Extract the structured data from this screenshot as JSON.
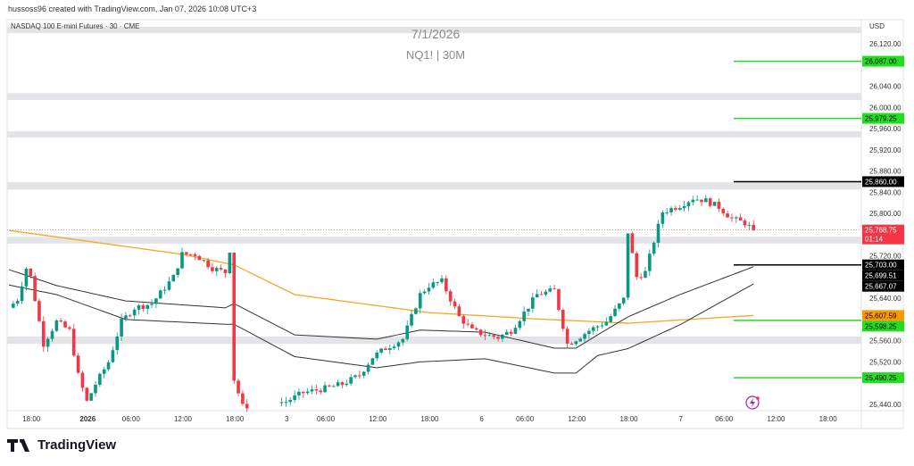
{
  "header": {
    "credit": "hussoss96 created with TradingView.com, Jan 07, 2026 10:08 UTC+3"
  },
  "symbol_title": "NASDAQ 100 E-mini Futures · 30 · CME",
  "watermark": {
    "date": "7/1/2026",
    "ticker": "NQ1! | 30M"
  },
  "currency": "USD",
  "footer": {
    "brand": "TradingView"
  },
  "colors": {
    "up": "#089981",
    "down": "#f23645",
    "ma": "#f5a623",
    "band": "#333333",
    "level_green": "#22dd22",
    "zone": "#e3e4e8"
  },
  "chart_data": {
    "type": "candlestick",
    "title": "NASDAQ 100 E-mini Futures · 30 · CME",
    "ylim": [
      25420,
      26150
    ],
    "y_ticks": [
      "26,120.00",
      "26,040.00",
      "26,000.00",
      "25,960.00",
      "25,920.00",
      "25,880.00",
      "25,840.00",
      "25,800.00",
      "25,720.00",
      "25,640.00",
      "25,560.00",
      "25,520.00",
      "25,440.00"
    ],
    "y_tick_values": [
      26120,
      26040,
      26000,
      25960,
      25920,
      25880,
      25840,
      25800,
      25720,
      25640,
      25560,
      25520,
      25440
    ],
    "x_ticks": [
      {
        "label": "18:00",
        "bar": 5,
        "bold": false
      },
      {
        "label": "2026",
        "bar": 18,
        "bold": true
      },
      {
        "label": "06:00",
        "bar": 28,
        "bold": false
      },
      {
        "label": "12:00",
        "bar": 40,
        "bold": false
      },
      {
        "label": "18:00",
        "bar": 52,
        "bold": false
      },
      {
        "label": "3",
        "bar": 64,
        "bold": false
      },
      {
        "label": "06:00",
        "bar": 73,
        "bold": false
      },
      {
        "label": "12:00",
        "bar": 85,
        "bold": false
      },
      {
        "label": "18:00",
        "bar": 97,
        "bold": false
      },
      {
        "label": "6",
        "bar": 109,
        "bold": false
      },
      {
        "label": "06:00",
        "bar": 119,
        "bold": false
      },
      {
        "label": "12:00",
        "bar": 131,
        "bold": false
      },
      {
        "label": "18:00",
        "bar": 143,
        "bold": false
      },
      {
        "label": "7",
        "bar": 155,
        "bold": false
      },
      {
        "label": "06:00",
        "bar": 165,
        "bold": false
      },
      {
        "label": "12:00",
        "bar": 177,
        "bold": false
      },
      {
        "label": "18:00",
        "bar": 189,
        "bold": false
      }
    ],
    "close_keypoints": [
      [
        0,
        25622
      ],
      [
        2,
        25638
      ],
      [
        4,
        25697
      ],
      [
        5,
        25680
      ],
      [
        8,
        25554
      ],
      [
        11,
        25596
      ],
      [
        14,
        25579
      ],
      [
        16,
        25495
      ],
      [
        18,
        25445
      ],
      [
        20,
        25478
      ],
      [
        23,
        25520
      ],
      [
        26,
        25596
      ],
      [
        29,
        25622
      ],
      [
        33,
        25630
      ],
      [
        38,
        25680
      ],
      [
        40,
        25723
      ],
      [
        43,
        25723
      ],
      [
        47,
        25697
      ],
      [
        50,
        25689
      ],
      [
        51,
        25731
      ],
      [
        52,
        25487
      ],
      [
        54,
        25436
      ],
      [
        64,
        25445
      ],
      [
        68,
        25462
      ],
      [
        73,
        25470
      ],
      [
        77,
        25478
      ],
      [
        81,
        25495
      ],
      [
        84,
        25529
      ],
      [
        87,
        25546
      ],
      [
        91,
        25563
      ],
      [
        95,
        25647
      ],
      [
        97,
        25664
      ],
      [
        100,
        25672
      ],
      [
        104,
        25605
      ],
      [
        107,
        25579
      ],
      [
        110,
        25571
      ],
      [
        113,
        25566
      ],
      [
        116,
        25579
      ],
      [
        119,
        25613
      ],
      [
        122,
        25647
      ],
      [
        126,
        25655
      ],
      [
        129,
        25554
      ],
      [
        131,
        25563
      ],
      [
        134,
        25579
      ],
      [
        138,
        25596
      ],
      [
        142,
        25638
      ],
      [
        143,
        25765
      ],
      [
        145,
        25680
      ],
      [
        147,
        25689
      ],
      [
        149,
        25748
      ],
      [
        151,
        25803
      ],
      [
        155,
        25815
      ],
      [
        158,
        25829
      ],
      [
        161,
        25824
      ],
      [
        164,
        25812
      ],
      [
        167,
        25790
      ],
      [
        170,
        25782
      ],
      [
        172,
        25768.75
      ]
    ],
    "ma_keypoints": [
      [
        0,
        25768
      ],
      [
        40,
        25723
      ],
      [
        52,
        25703
      ],
      [
        66,
        25647
      ],
      [
        97,
        25613
      ],
      [
        122,
        25601
      ],
      [
        143,
        25593
      ],
      [
        172,
        25607.59
      ]
    ],
    "upper_band": [
      [
        0,
        25694
      ],
      [
        11,
        25664
      ],
      [
        27,
        25635
      ],
      [
        50,
        25622
      ],
      [
        52,
        25630
      ],
      [
        66,
        25571
      ],
      [
        85,
        25563
      ],
      [
        95,
        25580
      ],
      [
        110,
        25576
      ],
      [
        126,
        25546
      ],
      [
        131,
        25546
      ],
      [
        136,
        25571
      ],
      [
        143,
        25605
      ],
      [
        155,
        25647
      ],
      [
        172,
        25699.51
      ]
    ],
    "lower_band": [
      [
        0,
        25665
      ],
      [
        11,
        25647
      ],
      [
        27,
        25600
      ],
      [
        50,
        25591
      ],
      [
        52,
        25591
      ],
      [
        66,
        25530
      ],
      [
        85,
        25509
      ],
      [
        95,
        25520
      ],
      [
        110,
        25526
      ],
      [
        126,
        25499
      ],
      [
        131,
        25499
      ],
      [
        136,
        25532
      ],
      [
        143,
        25545
      ],
      [
        155,
        25590
      ],
      [
        172,
        25667.07
      ]
    ],
    "zones": [
      [
        26140,
        26152
      ],
      [
        26014,
        26027
      ],
      [
        25943,
        25955
      ],
      [
        25845,
        25859
      ],
      [
        25743,
        25756
      ],
      [
        25554,
        25568
      ]
    ],
    "levels": [
      {
        "price": 26087,
        "label": "26,087.00",
        "color": "#22dd22",
        "text": "#000"
      },
      {
        "price": 25979.25,
        "label": "25,979.25",
        "color": "#22dd22",
        "text": "#000"
      },
      {
        "price": 25860,
        "label": "25,860.00",
        "color": "#000000",
        "text": "#fff"
      },
      {
        "price": 25703,
        "label": "25,703.00",
        "color": "#000000",
        "text": "#fff"
      },
      {
        "price": 25598.25,
        "label": "25,598.25",
        "color": "#22dd22",
        "text": "#000"
      },
      {
        "price": 25490.25,
        "label": "25,490.25",
        "color": "#22dd22",
        "text": "#000"
      }
    ],
    "price_labels": [
      {
        "price": 25699.51,
        "label": "25,699.51",
        "bg": "#000000",
        "text": "#fff"
      },
      {
        "price": 25667.07,
        "label": "25,667.07",
        "bg": "#000000",
        "text": "#fff"
      },
      {
        "price": 25607.59,
        "label": "25,607.59",
        "bg": "#ff9800",
        "text": "#000"
      }
    ],
    "last_price": {
      "price": 25768.75,
      "label": "25,768.75",
      "countdown": "01:14",
      "bg": "#f23645"
    }
  }
}
